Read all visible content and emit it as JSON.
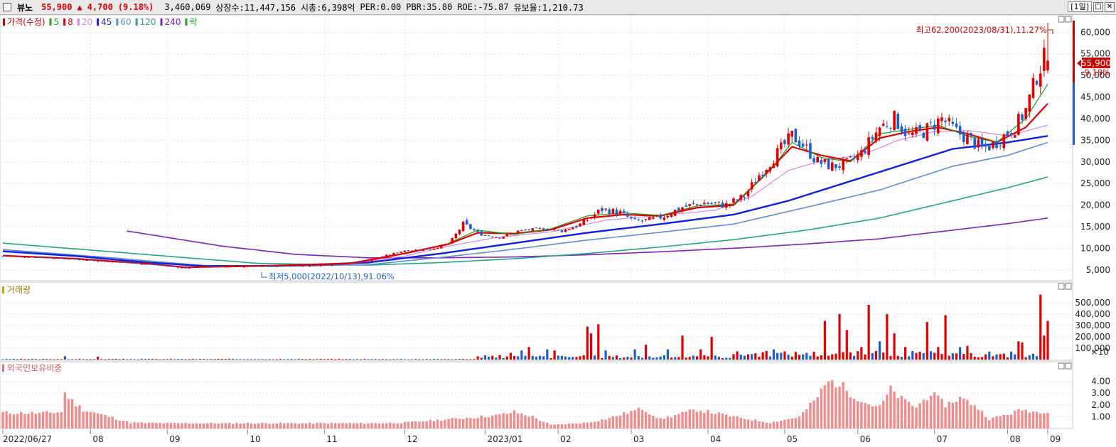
{
  "header": {
    "stock_name": "뷰노",
    "price": "55,900",
    "change_arrow": "▲",
    "change": "4,700",
    "change_pct": "(9.18%)",
    "volume": "3,460,069",
    "listed_shares": "상장수:11,447,156",
    "market_cap": "시총:6,398억",
    "per": "PER:0.00",
    "pbr": "PBR:35.80",
    "roe": "ROE:-75.87",
    "reserve_ratio": "유보율:1,210.73",
    "period": "[1일]",
    "colors": {
      "up": "#e00000",
      "down": "#1e5fd0"
    }
  },
  "chart_data": [
    {
      "type": "candlestick",
      "title": "",
      "legend": [
        {
          "label": "가격(수정)",
          "color": "#c00000"
        },
        {
          "label": "5",
          "color": "#1aa01a"
        },
        {
          "label": "8",
          "color": "#e00000"
        },
        {
          "label": "20",
          "color": "#e080e0"
        },
        {
          "label": "45",
          "color": "#1020e0"
        },
        {
          "label": "60",
          "color": "#5b8fd0"
        },
        {
          "label": "120",
          "color": "#20a880"
        },
        {
          "label": "240",
          "color": "#8020c0"
        },
        {
          "label": "락",
          "color": "#20a020"
        }
      ],
      "y_ticks": [
        "5,000",
        "10,000",
        "15,000",
        "20,000",
        "25,000",
        "30,000",
        "35,000",
        "40,000",
        "45,000",
        "50,000",
        "55,000",
        "60,000"
      ],
      "ylim": [
        2500,
        64000
      ],
      "current_price": "55,900",
      "current_pct": "9.18%",
      "annotations": {
        "high": "최고62,200(2023/08/31),11.27%",
        "low": "최저5,000(2022/10/13),91.06%"
      },
      "x_labels": [
        "2022/06/27",
        "08",
        "09",
        "10",
        "11",
        "12",
        "2023/01",
        "02",
        "03",
        "04",
        "05",
        "06",
        "07",
        "08",
        "09"
      ],
      "close_path": [
        [
          0,
          8200
        ],
        [
          14,
          7800
        ],
        [
          22,
          7300
        ],
        [
          32,
          6800
        ],
        [
          42,
          6200
        ],
        [
          47,
          5700
        ],
        [
          50,
          5400
        ],
        [
          55,
          5900
        ],
        [
          62,
          5700
        ],
        [
          74,
          5900
        ],
        [
          86,
          6000
        ],
        [
          95,
          6600
        ],
        [
          100,
          7100
        ],
        [
          104,
          8100
        ],
        [
          110,
          9500
        ],
        [
          117,
          9800
        ],
        [
          122,
          11000
        ],
        [
          126,
          15500
        ],
        [
          131,
          13200
        ],
        [
          136,
          12500
        ],
        [
          141,
          14000
        ],
        [
          148,
          14600
        ],
        [
          153,
          14000
        ],
        [
          158,
          15500
        ],
        [
          164,
          19000
        ],
        [
          169,
          18200
        ],
        [
          173,
          16200
        ],
        [
          177,
          16500
        ],
        [
          181,
          17500
        ],
        [
          186,
          19500
        ],
        [
          192,
          20500
        ],
        [
          198,
          20000
        ],
        [
          203,
          22000
        ],
        [
          207,
          27000
        ],
        [
          212,
          32000
        ],
        [
          216,
          36000
        ],
        [
          219,
          34000
        ],
        [
          223,
          30000
        ],
        [
          227,
          29000
        ],
        [
          231,
          29500
        ],
        [
          235,
          32000
        ],
        [
          240,
          38000
        ],
        [
          244,
          40000
        ],
        [
          248,
          36000
        ],
        [
          252,
          37000
        ],
        [
          257,
          40000
        ],
        [
          261,
          37000
        ],
        [
          265,
          35000
        ],
        [
          268,
          33000
        ],
        [
          271,
          34000
        ],
        [
          274,
          36000
        ],
        [
          277,
          38000
        ],
        [
          280,
          42000
        ],
        [
          283,
          50000
        ],
        [
          286,
          55900
        ]
      ],
      "ma_lines": [
        {
          "name": "5",
          "color": "#1aa01a",
          "width": 1.2,
          "points": [
            [
              122,
              11200
            ],
            [
              130,
              14200
            ],
            [
              140,
              13200
            ],
            [
              150,
              14500
            ],
            [
              160,
              17500
            ],
            [
              170,
              18200
            ],
            [
              180,
              17600
            ],
            [
              190,
              19800
            ],
            [
              200,
              20200
            ],
            [
              210,
              28000
            ],
            [
              216,
              34500
            ],
            [
              224,
              31000
            ],
            [
              232,
              30000
            ],
            [
              240,
              36500
            ],
            [
              248,
              37500
            ],
            [
              256,
              38500
            ],
            [
              264,
              36000
            ],
            [
              272,
              34500
            ],
            [
              280,
              40000
            ],
            [
              286,
              48000
            ]
          ]
        },
        {
          "name": "8",
          "color": "#e00000",
          "width": 2.2,
          "points": [
            [
              0,
              8300
            ],
            [
              20,
              7600
            ],
            [
              40,
              6400
            ],
            [
              50,
              5600
            ],
            [
              70,
              5900
            ],
            [
              95,
              6500
            ],
            [
              110,
              8800
            ],
            [
              122,
              11000
            ],
            [
              130,
              13600
            ],
            [
              140,
              13400
            ],
            [
              150,
              14300
            ],
            [
              160,
              17000
            ],
            [
              170,
              17800
            ],
            [
              180,
              17500
            ],
            [
              190,
              19400
            ],
            [
              200,
              20000
            ],
            [
              208,
              26500
            ],
            [
              216,
              33500
            ],
            [
              224,
              31500
            ],
            [
              232,
              30200
            ],
            [
              240,
              35500
            ],
            [
              248,
              37000
            ],
            [
              256,
              38000
            ],
            [
              264,
              36500
            ],
            [
              272,
              34500
            ],
            [
              280,
              38000
            ],
            [
              286,
              43500
            ]
          ]
        },
        {
          "name": "20",
          "color": "#e080e0",
          "width": 1.2,
          "points": [
            [
              95,
              6500
            ],
            [
              110,
              8200
            ],
            [
              122,
              10500
            ],
            [
              135,
              12500
            ],
            [
              150,
              13800
            ],
            [
              165,
              16500
            ],
            [
              180,
              17600
            ],
            [
              195,
              18800
            ],
            [
              205,
              22000
            ],
            [
              215,
              28000
            ],
            [
              225,
              30500
            ],
            [
              235,
              31500
            ],
            [
              245,
              35000
            ],
            [
              255,
              37000
            ],
            [
              265,
              37200
            ],
            [
              275,
              36000
            ],
            [
              286,
              38500
            ]
          ]
        },
        {
          "name": "45",
          "color": "#1020e0",
          "width": 2.4,
          "points": [
            [
              0,
              9300
            ],
            [
              20,
              8200
            ],
            [
              40,
              6700
            ],
            [
              55,
              5900
            ],
            [
              75,
              5900
            ],
            [
              100,
              6700
            ],
            [
              120,
              8800
            ],
            [
              140,
              11200
            ],
            [
              160,
              13600
            ],
            [
              180,
              15600
            ],
            [
              200,
              17800
            ],
            [
              215,
              21000
            ],
            [
              230,
              25000
            ],
            [
              245,
              29000
            ],
            [
              260,
              33000
            ],
            [
              275,
              34500
            ],
            [
              286,
              36000
            ]
          ]
        },
        {
          "name": "60",
          "color": "#5b8fd0",
          "width": 1.6,
          "points": [
            [
              0,
              9700
            ],
            [
              30,
              7800
            ],
            [
              55,
              6000
            ],
            [
              80,
              5900
            ],
            [
              100,
              6200
            ],
            [
              120,
              7900
            ],
            [
              140,
              9800
            ],
            [
              160,
              11900
            ],
            [
              180,
              13700
            ],
            [
              200,
              15600
            ],
            [
              220,
              19500
            ],
            [
              240,
              23500
            ],
            [
              260,
              29000
            ],
            [
              275,
              31500
            ],
            [
              286,
              34500
            ]
          ]
        },
        {
          "name": "120",
          "color": "#20a880",
          "width": 1.6,
          "points": [
            [
              0,
              11200
            ],
            [
              40,
              8500
            ],
            [
              70,
              6500
            ],
            [
              100,
              6100
            ],
            [
              120,
              6700
            ],
            [
              140,
              7600
            ],
            [
              160,
              8800
            ],
            [
              180,
              10300
            ],
            [
              200,
              12000
            ],
            [
              220,
              14200
            ],
            [
              240,
              17000
            ],
            [
              260,
              21000
            ],
            [
              275,
              24000
            ],
            [
              286,
              26500
            ]
          ]
        },
        {
          "name": "240",
          "color": "#8020c0",
          "width": 1.6,
          "points": [
            [
              34,
              14000
            ],
            [
              60,
              10500
            ],
            [
              80,
              8600
            ],
            [
              100,
              7800
            ],
            [
              120,
              7800
            ],
            [
              140,
              8000
            ],
            [
              160,
              8500
            ],
            [
              180,
              9200
            ],
            [
              200,
              10000
            ],
            [
              220,
              11000
            ],
            [
              240,
              12200
            ],
            [
              260,
              14200
            ],
            [
              275,
              15700
            ],
            [
              286,
              17000
            ]
          ]
        }
      ],
      "num_bars": 287
    },
    {
      "type": "bar",
      "title": "거래량",
      "y_ticks": [
        "100,000",
        "200,000",
        "300,000",
        "400,000",
        "500,000"
      ],
      "multiplier": "×10",
      "ylim": [
        0,
        580000
      ],
      "spikes": [
        [
          17,
          30000,
          "d"
        ],
        [
          26,
          25000,
          "u"
        ],
        [
          136,
          40000,
          "u"
        ],
        [
          139,
          60000,
          "u"
        ],
        [
          142,
          80000,
          "d"
        ],
        [
          144,
          110000,
          "u"
        ],
        [
          149,
          90000,
          "d"
        ],
        [
          151,
          80000,
          "u"
        ],
        [
          160,
          290000,
          "u"
        ],
        [
          161,
          230000,
          "u"
        ],
        [
          163,
          310000,
          "u"
        ],
        [
          165,
          80000,
          "d"
        ],
        [
          173,
          90000,
          "d"
        ],
        [
          176,
          130000,
          "u"
        ],
        [
          182,
          90000,
          "d"
        ],
        [
          186,
          210000,
          "u"
        ],
        [
          191,
          90000,
          "u"
        ],
        [
          194,
          200000,
          "u"
        ],
        [
          211,
          90000,
          "d"
        ],
        [
          220,
          60000,
          "d"
        ],
        [
          225,
          340000,
          "u"
        ],
        [
          229,
          400000,
          "u"
        ],
        [
          231,
          260000,
          "u"
        ],
        [
          235,
          110000,
          "u"
        ],
        [
          237,
          480000,
          "u"
        ],
        [
          240,
          160000,
          "d"
        ],
        [
          242,
          400000,
          "u"
        ],
        [
          244,
          230000,
          "u"
        ],
        [
          247,
          110000,
          "u"
        ],
        [
          253,
          330000,
          "u"
        ],
        [
          256,
          110000,
          "u"
        ],
        [
          258,
          390000,
          "u"
        ],
        [
          262,
          110000,
          "d"
        ],
        [
          264,
          120000,
          "u"
        ],
        [
          270,
          70000,
          "d"
        ],
        [
          276,
          70000,
          "d"
        ],
        [
          278,
          160000,
          "u"
        ],
        [
          279,
          150000,
          "u"
        ],
        [
          284,
          570000,
          "u"
        ],
        [
          285,
          210000,
          "u"
        ],
        [
          286,
          340000,
          "u"
        ]
      ]
    },
    {
      "type": "bar",
      "title": "외국인보유비중",
      "y_ticks": [
        "1.00",
        "2.00",
        "3.00",
        "4.00"
      ],
      "ylim": [
        0,
        4.7
      ],
      "profile": [
        [
          0,
          1.35
        ],
        [
          10,
          1.3
        ],
        [
          16,
          1.4
        ],
        [
          17,
          3.0
        ],
        [
          19,
          2.3
        ],
        [
          22,
          1.6
        ],
        [
          28,
          1.1
        ],
        [
          35,
          0.5
        ],
        [
          45,
          0.45
        ],
        [
          60,
          0.45
        ],
        [
          75,
          0.45
        ],
        [
          100,
          0.45
        ],
        [
          110,
          0.5
        ],
        [
          135,
          1.1
        ],
        [
          140,
          1.4
        ],
        [
          145,
          1.0
        ],
        [
          150,
          0.3
        ],
        [
          160,
          0.5
        ],
        [
          165,
          0.8
        ],
        [
          175,
          1.7
        ],
        [
          180,
          0.8
        ],
        [
          185,
          1.2
        ],
        [
          190,
          1.6
        ],
        [
          195,
          1.3
        ],
        [
          200,
          1.0
        ],
        [
          210,
          0.5
        ],
        [
          218,
          1.0
        ],
        [
          222,
          2.3
        ],
        [
          226,
          4.0
        ],
        [
          229,
          3.8
        ],
        [
          232,
          3.0
        ],
        [
          236,
          2.2
        ],
        [
          240,
          1.8
        ],
        [
          243,
          3.3
        ],
        [
          246,
          2.5
        ],
        [
          250,
          1.8
        ],
        [
          254,
          3.0
        ],
        [
          258,
          2.0
        ],
        [
          262,
          2.6
        ],
        [
          266,
          2.0
        ],
        [
          270,
          0.8
        ],
        [
          275,
          1.2
        ],
        [
          279,
          1.6
        ],
        [
          283,
          1.4
        ],
        [
          286,
          1.5
        ]
      ]
    }
  ]
}
